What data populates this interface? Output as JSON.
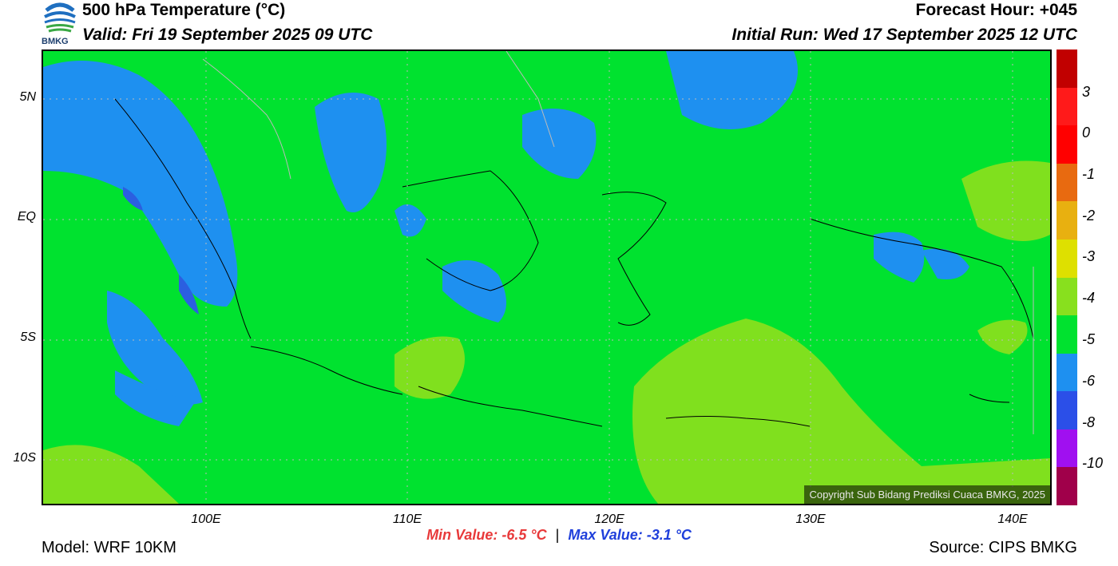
{
  "header": {
    "title": "500 hPa Temperature (°C)",
    "valid": "Valid: Fri 19 September 2025 09 UTC",
    "forecast_hour": "Forecast Hour: +045",
    "initial_run": "Initial Run: Wed 17 September 2025 12 UTC",
    "logo_text": "BMKG"
  },
  "map": {
    "lat_labels": [
      "5N",
      "EQ",
      "5S",
      "10S"
    ],
    "lon_labels": [
      "100E",
      "110E",
      "120E",
      "130E",
      "140E"
    ],
    "copyright": "Copyright Sub Bidang Prediksi Cuaca BMKG, 2025",
    "colors": {
      "base_green": "#00e22f",
      "blue": "#1e90f0",
      "dark_blue": "#2b5fe0",
      "yellow_green": "#80e01e"
    }
  },
  "colorbar": {
    "labels": [
      "3",
      "0",
      "-1",
      "-2",
      "-3",
      "-4",
      "-5",
      "-6",
      "-8",
      "-10"
    ],
    "colors": [
      "#c10000",
      "#ff1a1a",
      "#ff0000",
      "#e86a10",
      "#e8b010",
      "#dee000",
      "#88e01e",
      "#00e22f",
      "#1e90f0",
      "#2b4fe8",
      "#a010f0",
      "#a0004a"
    ]
  },
  "footer": {
    "min_value": "Min Value: -6.5 °C",
    "separator": "|",
    "max_value": "Max Value: -3.1 °C",
    "model": "Model: WRF 10KM",
    "source": "Source: CIPS BMKG"
  }
}
